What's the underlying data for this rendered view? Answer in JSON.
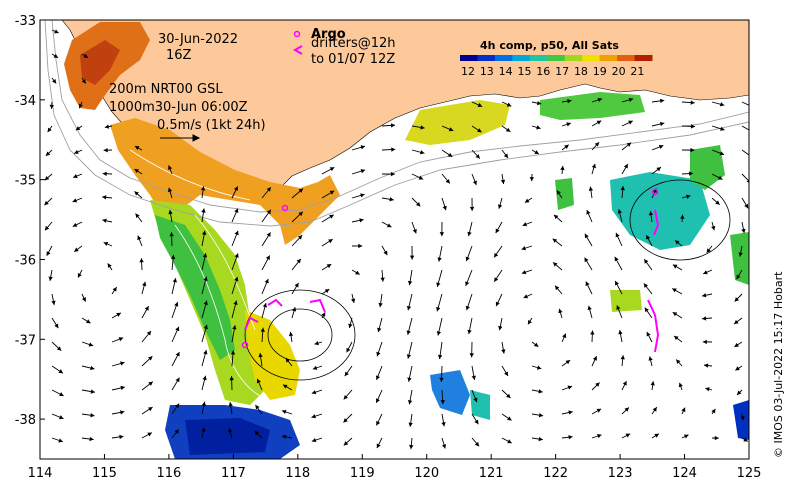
{
  "map": {
    "lon_range": [
      114,
      125
    ],
    "lat_range": [
      -38.5,
      -33
    ],
    "x_ticks": [
      "114",
      "115",
      "116",
      "117",
      "118",
      "119",
      "120",
      "121",
      "122",
      "123",
      "124",
      "125"
    ],
    "y_ticks": [
      "-33",
      "-34",
      "-35",
      "-36",
      "-37",
      "-38"
    ],
    "land_color": "#fdc99a",
    "credit": "© IMOS 03-Jul-2022 15:17 Hobart"
  },
  "annotations": {
    "date_line1": "30-Jun-2022",
    "date_line2": "16Z",
    "nrt_line1": "200m  NRT00 GSL",
    "nrt_line2": "1000m30-Jun 06:00Z",
    "scale_label": "0.5m/s (1kt 24h)",
    "argo_label": "Argo",
    "drifters_line1": "drifters@12h",
    "drifters_line2": "to 01/07 12Z"
  },
  "colorbar": {
    "title": "4h comp, p50, All Sats",
    "ticks": [
      "12",
      "13",
      "14",
      "15",
      "16",
      "17",
      "18",
      "19",
      "20",
      "21"
    ],
    "colors": [
      "#00008f",
      "#0030c8",
      "#0070e6",
      "#00a8d8",
      "#20c4a0",
      "#40c840",
      "#a0d820",
      "#f0e000",
      "#f0a000",
      "#e06010",
      "#b02000"
    ]
  }
}
